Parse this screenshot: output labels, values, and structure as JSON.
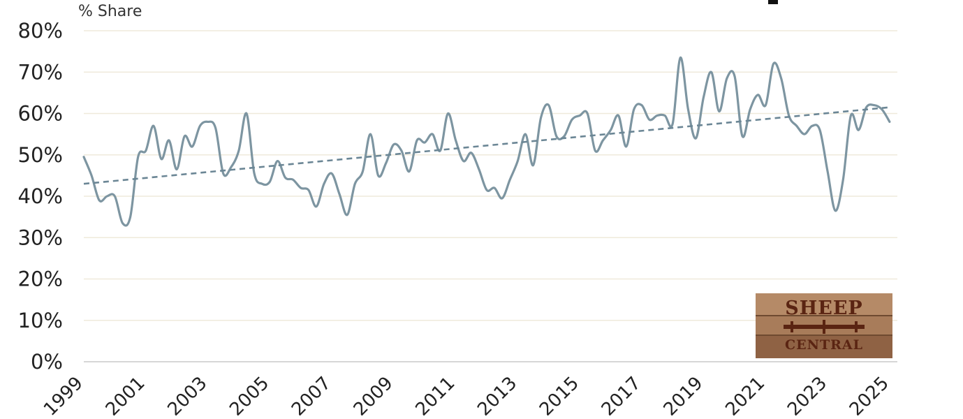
{
  "chart_data": {
    "type": "line",
    "ylabel": "% Share",
    "ylim": [
      0,
      80
    ],
    "y_ticks": [
      "0%",
      "10%",
      "20%",
      "30%",
      "40%",
      "50%",
      "60%",
      "70%",
      "80%"
    ],
    "y_tick_values": [
      0,
      10,
      20,
      30,
      40,
      50,
      60,
      70,
      80
    ],
    "xlim": [
      1999,
      2025.25
    ],
    "x_ticks": [
      "1999",
      "2001",
      "2003",
      "2005",
      "2007",
      "2009",
      "2011",
      "2013",
      "2015",
      "2017",
      "2019",
      "2021",
      "2023",
      "2025"
    ],
    "x_tick_values": [
      1999,
      2001,
      2003,
      2005,
      2007,
      2009,
      2011,
      2013,
      2015,
      2017,
      2019,
      2021,
      2023,
      2025
    ],
    "grid": true,
    "series": [
      {
        "values": [
          [
            1999.0,
            49.5
          ],
          [
            1999.25,
            45.0
          ],
          [
            1999.5,
            39.0
          ],
          [
            1999.75,
            40.0
          ],
          [
            2000.0,
            40.0
          ],
          [
            2000.25,
            33.5
          ],
          [
            2000.5,
            35.0
          ],
          [
            2000.75,
            49.5
          ],
          [
            2001.0,
            51.0
          ],
          [
            2001.25,
            57.0
          ],
          [
            2001.5,
            49.0
          ],
          [
            2001.75,
            53.5
          ],
          [
            2002.0,
            46.5
          ],
          [
            2002.25,
            54.5
          ],
          [
            2002.5,
            52.0
          ],
          [
            2002.75,
            57.0
          ],
          [
            2003.0,
            58.0
          ],
          [
            2003.25,
            56.5
          ],
          [
            2003.5,
            45.5
          ],
          [
            2003.75,
            47.0
          ],
          [
            2004.0,
            51.0
          ],
          [
            2004.25,
            60.0
          ],
          [
            2004.5,
            45.5
          ],
          [
            2004.75,
            43.0
          ],
          [
            2005.0,
            43.5
          ],
          [
            2005.25,
            48.5
          ],
          [
            2005.5,
            44.5
          ],
          [
            2005.75,
            44.0
          ],
          [
            2006.0,
            42.0
          ],
          [
            2006.25,
            41.5
          ],
          [
            2006.5,
            37.5
          ],
          [
            2006.75,
            43.0
          ],
          [
            2007.0,
            45.5
          ],
          [
            2007.25,
            40.5
          ],
          [
            2007.5,
            35.5
          ],
          [
            2007.75,
            43.0
          ],
          [
            2008.0,
            46.0
          ],
          [
            2008.25,
            55.0
          ],
          [
            2008.5,
            45.0
          ],
          [
            2008.75,
            48.0
          ],
          [
            2009.0,
            52.5
          ],
          [
            2009.25,
            51.0
          ],
          [
            2009.5,
            46.0
          ],
          [
            2009.75,
            53.5
          ],
          [
            2010.0,
            53.0
          ],
          [
            2010.25,
            55.0
          ],
          [
            2010.5,
            51.0
          ],
          [
            2010.75,
            60.0
          ],
          [
            2011.0,
            53.5
          ],
          [
            2011.25,
            48.5
          ],
          [
            2011.5,
            50.5
          ],
          [
            2011.75,
            46.5
          ],
          [
            2012.0,
            41.5
          ],
          [
            2012.25,
            42.0
          ],
          [
            2012.5,
            39.5
          ],
          [
            2012.75,
            44.0
          ],
          [
            2013.0,
            48.5
          ],
          [
            2013.25,
            55.0
          ],
          [
            2013.5,
            47.5
          ],
          [
            2013.75,
            59.0
          ],
          [
            2014.0,
            62.0
          ],
          [
            2014.25,
            54.5
          ],
          [
            2014.5,
            54.5
          ],
          [
            2014.75,
            58.5
          ],
          [
            2015.0,
            59.5
          ],
          [
            2015.25,
            60.0
          ],
          [
            2015.5,
            51.0
          ],
          [
            2015.75,
            53.5
          ],
          [
            2016.0,
            56.0
          ],
          [
            2016.25,
            59.5
          ],
          [
            2016.5,
            52.0
          ],
          [
            2016.75,
            61.0
          ],
          [
            2017.0,
            62.0
          ],
          [
            2017.25,
            58.5
          ],
          [
            2017.5,
            59.5
          ],
          [
            2017.75,
            59.5
          ],
          [
            2018.0,
            57.5
          ],
          [
            2018.25,
            73.5
          ],
          [
            2018.5,
            61.0
          ],
          [
            2018.75,
            54.0
          ],
          [
            2019.0,
            64.0
          ],
          [
            2019.25,
            70.0
          ],
          [
            2019.5,
            60.5
          ],
          [
            2019.75,
            68.5
          ],
          [
            2020.0,
            69.0
          ],
          [
            2020.25,
            54.5
          ],
          [
            2020.5,
            61.0
          ],
          [
            2020.75,
            64.5
          ],
          [
            2021.0,
            62.0
          ],
          [
            2021.25,
            72.0
          ],
          [
            2021.5,
            68.5
          ],
          [
            2021.75,
            59.5
          ],
          [
            2022.0,
            57.0
          ],
          [
            2022.25,
            55.0
          ],
          [
            2022.5,
            57.0
          ],
          [
            2022.75,
            56.0
          ],
          [
            2023.0,
            46.0
          ],
          [
            2023.25,
            36.5
          ],
          [
            2023.5,
            44.0
          ],
          [
            2023.75,
            59.5
          ],
          [
            2024.0,
            56.0
          ],
          [
            2024.25,
            61.5
          ],
          [
            2024.5,
            62.0
          ],
          [
            2024.75,
            61.0
          ],
          [
            2025.0,
            58.0
          ]
        ],
        "color": "#7d95a1"
      },
      {
        "style": "trend",
        "values": [
          [
            1999.0,
            43.0
          ],
          [
            2025.0,
            61.5
          ]
        ],
        "color": "#6b8695"
      }
    ]
  },
  "logo": {
    "line1": "SHEEP",
    "line2": "CENTRAL"
  }
}
